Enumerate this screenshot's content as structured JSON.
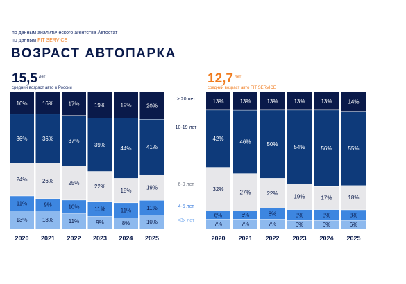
{
  "source_line1": "по данным аналитического агентства Автостат",
  "source_line2_prefix": "по данным ",
  "source_line2_highlight": "FIT SERVICE",
  "title": "ВОЗРАСТ АВТОПАРКА",
  "left_summary": {
    "value": "15,5",
    "unit": "лет",
    "caption": "средний возраст авто в России"
  },
  "right_summary": {
    "value": "12,7",
    "unit": "лет",
    "caption": "средний возраст авто FIT SERVICE"
  },
  "legend": [
    {
      "label": "> 20 лет",
      "color": "#0a1a4a"
    },
    {
      "label": "10-19 лет",
      "color": "#0a1a4a"
    },
    {
      "label": "6-9 лет",
      "color": "#6b7280"
    },
    {
      "label": "4-5 лет",
      "color": "#3b7ddd"
    },
    {
      "label": "<3х лет",
      "color": "#7fb0f0"
    }
  ],
  "chart_data": [
    {
      "type": "bar",
      "stacked": true,
      "normalized": true,
      "categories": [
        "2020",
        "2021",
        "2022",
        "2023",
        "2024",
        "2025"
      ],
      "series": [
        {
          "name": "<3х лет",
          "values": [
            13,
            13,
            11,
            9,
            8,
            10
          ],
          "color": "#8db9ee",
          "text_color": "#0a1a4a"
        },
        {
          "name": "4-5 лет",
          "values": [
            11,
            9,
            10,
            11,
            11,
            11
          ],
          "color": "#3d86e0",
          "text_color": "#0a1a4a"
        },
        {
          "name": "6-9 лет",
          "values": [
            24,
            26,
            25,
            22,
            18,
            19
          ],
          "color": "#e7e7ea",
          "text_color": "#0a1a4a"
        },
        {
          "name": "10-19 лет",
          "values": [
            36,
            36,
            37,
            39,
            44,
            41
          ],
          "color": "#0e3a7a",
          "text_color": "#ffffff"
        },
        {
          "name": "> 20 лет",
          "values": [
            16,
            16,
            17,
            19,
            19,
            20
          ],
          "color": "#0a1a4a",
          "text_color": "#ffffff"
        }
      ]
    },
    {
      "type": "bar",
      "stacked": true,
      "normalized": true,
      "categories": [
        "2020",
        "2021",
        "2022",
        "2023",
        "2024",
        "2025"
      ],
      "series": [
        {
          "name": "<3х лет",
          "values": [
            7,
            7,
            7,
            6,
            6,
            6
          ],
          "color": "#8db9ee",
          "text_color": "#0a1a4a"
        },
        {
          "name": "4-5 лет",
          "values": [
            6,
            6,
            8,
            8,
            8,
            8
          ],
          "color": "#3d86e0",
          "text_color": "#0a1a4a"
        },
        {
          "name": "6-9 лет",
          "values": [
            32,
            27,
            22,
            19,
            17,
            18
          ],
          "color": "#e7e7ea",
          "text_color": "#0a1a4a"
        },
        {
          "name": "10-19 лет",
          "values": [
            42,
            46,
            50,
            54,
            56,
            55
          ],
          "color": "#0e3a7a",
          "text_color": "#ffffff"
        },
        {
          "name": "> 20 лет",
          "values": [
            13,
            13,
            13,
            13,
            13,
            14
          ],
          "color": "#0a1a4a",
          "text_color": "#ffffff"
        }
      ]
    }
  ]
}
